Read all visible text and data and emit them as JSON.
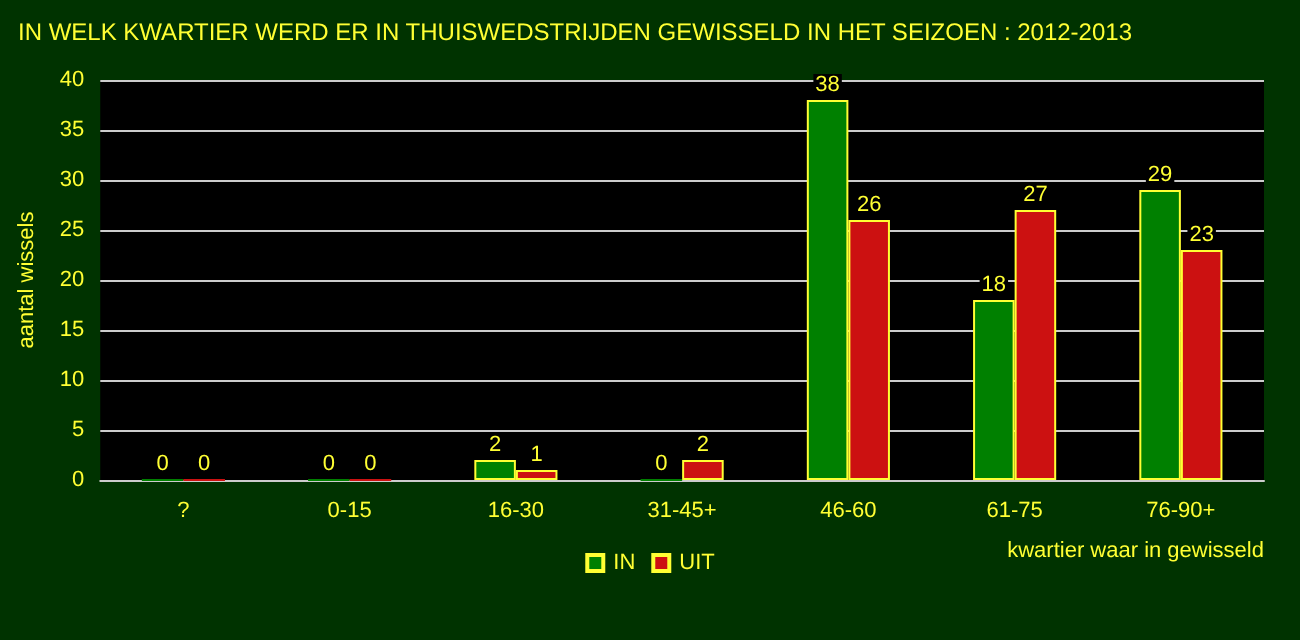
{
  "chart_data": {
    "type": "bar",
    "title": "IN WELK KWARTIER WERD ER IN THUISWEDSTRIJDEN GEWISSELD IN HET SEIZOEN : 2012-2013",
    "xlabel": "kwartier waar in gewisseld",
    "ylabel": "aantal wissels",
    "categories": [
      "?",
      "0-15",
      "16-30",
      "31-45+",
      "46-60",
      "61-75",
      "76-90+"
    ],
    "series": [
      {
        "name": "IN",
        "color": "#008000",
        "values": [
          0,
          0,
          2,
          0,
          38,
          18,
          29
        ]
      },
      {
        "name": "UIT",
        "color": "#cc1111",
        "values": [
          0,
          0,
          1,
          2,
          26,
          27,
          23
        ]
      }
    ],
    "ylim": [
      0,
      40
    ],
    "yticks": [
      0,
      5,
      10,
      15,
      20,
      25,
      30,
      35,
      40
    ],
    "grid": "y",
    "legend": "bottom",
    "data_labels": true
  }
}
